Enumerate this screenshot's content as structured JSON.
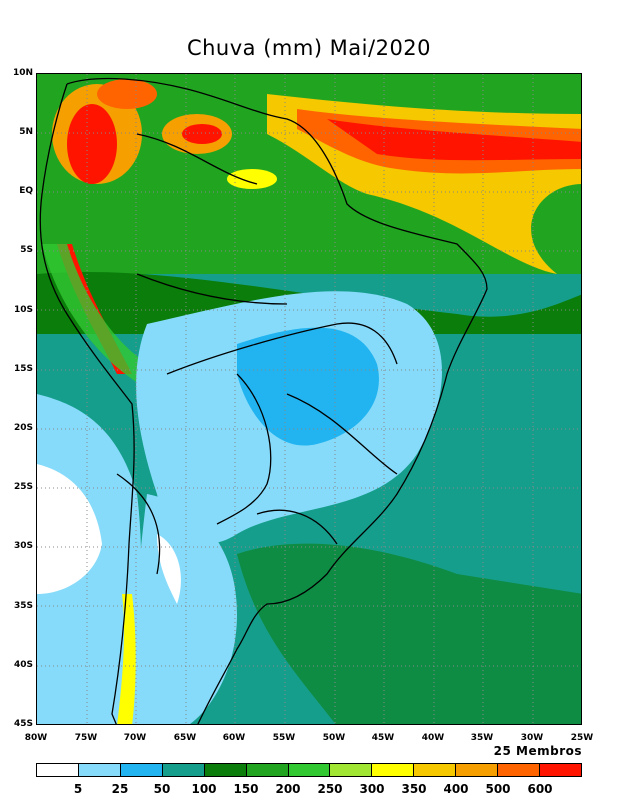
{
  "title": "Chuva (mm) Mai/2020",
  "members_label": "25 Membros",
  "lat_labels": [
    "10N",
    "5N",
    "EQ",
    "5S",
    "10S",
    "15S",
    "20S",
    "25S",
    "30S",
    "35S",
    "40S",
    "45S"
  ],
  "lon_labels": [
    "80W",
    "75W",
    "70W",
    "65W",
    "60W",
    "55W",
    "50W",
    "45W",
    "40W",
    "35W",
    "30W",
    "25W"
  ],
  "colorbar": {
    "colors": [
      "#ffffff",
      "#87dbfa",
      "#21b4f0",
      "#169e8c",
      "#0a7d0a",
      "#21a521",
      "#32c832",
      "#a0e632",
      "#ffff00",
      "#f5c800",
      "#f5a000",
      "#ff6400",
      "#ff1400"
    ],
    "labels": [
      "5",
      "25",
      "50",
      "100",
      "150",
      "200",
      "250",
      "300",
      "350",
      "400",
      "500",
      "600"
    ]
  },
  "regions": {
    "ocean": "#169e8c",
    "dry": "#87dbfa",
    "very_dry": "#ffffff",
    "wet": "#0a7d0a",
    "very_wet": "#ff1400"
  }
}
